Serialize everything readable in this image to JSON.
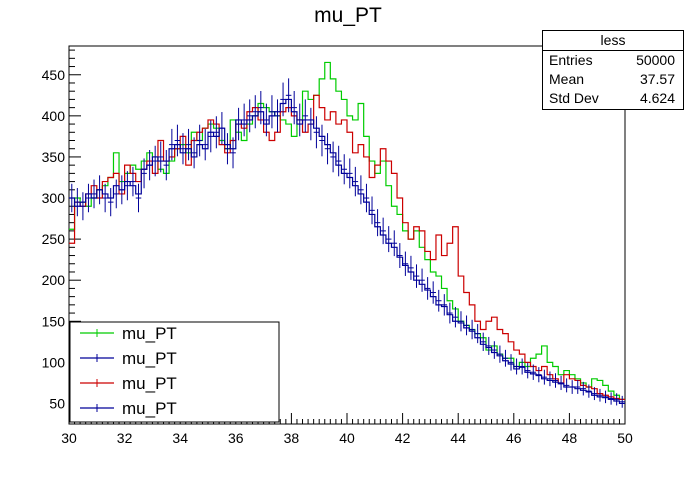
{
  "chart_data": {
    "type": "line",
    "title": "mu_PT",
    "xlabel": "",
    "ylabel": "",
    "xlim": [
      30,
      50
    ],
    "ylim": [
      25,
      485
    ],
    "x_ticks": [
      30,
      32,
      34,
      36,
      38,
      40,
      42,
      44,
      46,
      48,
      50
    ],
    "y_ticks": [
      50,
      100,
      150,
      200,
      250,
      300,
      350,
      400,
      450
    ],
    "bin_width": 0.2,
    "stats": {
      "title": "less",
      "rows": [
        {
          "label": "Entries",
          "value": "50000"
        },
        {
          "label": "Mean",
          "value": "37.57"
        },
        {
          "label": "Std Dev",
          "value": "4.624"
        }
      ]
    },
    "legend": {
      "placement": "bottom-left",
      "entries": [
        {
          "name": "mu_PT",
          "color": "#00cc00"
        },
        {
          "name": "mu_PT",
          "color": "#000099"
        },
        {
          "name": "mu_PT",
          "color": "#cc0000"
        },
        {
          "name": "mu_PT",
          "color": "#000099"
        }
      ]
    },
    "series": [
      {
        "name": "mu_PT",
        "style": "step",
        "color": "#00cc00",
        "values": [
          262,
          300,
          295,
          290,
          300,
          310,
          315,
          325,
          355,
          320,
          330,
          340,
          335,
          345,
          355,
          350,
          335,
          330,
          345,
          360,
          365,
          355,
          380,
          370,
          385,
          390,
          385,
          370,
          360,
          395,
          380,
          370,
          390,
          400,
          415,
          410,
          405,
          400,
          395,
          390,
          375,
          395,
          430,
          420,
          425,
          445,
          465,
          445,
          430,
          420,
          400,
          395,
          415,
          375,
          345,
          330,
          345,
          315,
          290,
          280,
          260,
          250,
          260,
          240,
          225,
          210,
          205,
          190,
          175,
          165,
          150,
          145,
          140,
          135,
          130,
          115,
          120,
          110,
          105,
          105,
          95,
          100,
          95,
          105,
          110,
          120,
          100,
          95,
          85,
          90,
          85,
          80,
          75,
          70,
          80,
          78,
          72,
          65,
          60,
          55
        ]
      },
      {
        "name": "mu_PT",
        "style": "step",
        "color": "#cc0000",
        "values": [
          245,
          295,
          290,
          305,
          315,
          300,
          320,
          325,
          330,
          305,
          340,
          330,
          320,
          335,
          345,
          330,
          370,
          345,
          350,
          360,
          375,
          340,
          370,
          380,
          385,
          395,
          390,
          365,
          355,
          370,
          390,
          385,
          405,
          410,
          395,
          380,
          370,
          380,
          405,
          410,
          400,
          395,
          380,
          390,
          425,
          410,
          395,
          405,
          390,
          395,
          380,
          355,
          365,
          350,
          325,
          340,
          360,
          345,
          330,
          300,
          270,
          250,
          265,
          260,
          235,
          225,
          255,
          230,
          245,
          265,
          205,
          185,
          170,
          150,
          140,
          150,
          155,
          140,
          135,
          125,
          115,
          110,
          100,
          95,
          90,
          95,
          85,
          80,
          75,
          85,
          80,
          78,
          72,
          70,
          68,
          62,
          60,
          58,
          56,
          55
        ]
      },
      {
        "name": "mu_PT",
        "style": "errorbar",
        "color": "#000099",
        "values": [
          300,
          295,
          290,
          300,
          305,
          310,
          300,
          295,
          305,
          310,
          315,
          320,
          300,
          330,
          340,
          345,
          350,
          340,
          365,
          370,
          360,
          365,
          355,
          370,
          365,
          375,
          380,
          385,
          360,
          355,
          390,
          395,
          400,
          405,
          410,
          395,
          405,
          400,
          420,
          425,
          410,
          395,
          400,
          390,
          380,
          370,
          360,
          350,
          345,
          335,
          330,
          320,
          310,
          300,
          285,
          270,
          260,
          250,
          245,
          230,
          220,
          215,
          205,
          200,
          190,
          185,
          175,
          170,
          160,
          155,
          150,
          145,
          140,
          135,
          125,
          120,
          115,
          110,
          105,
          100,
          95,
          95,
          90,
          88,
          85,
          82,
          80,
          78,
          75,
          72,
          70,
          70,
          68,
          65,
          62,
          60,
          58,
          56,
          55,
          52
        ]
      },
      {
        "name": "mu_PT",
        "style": "step",
        "color": "#000099",
        "values": [
          300,
          290,
          295,
          305,
          300,
          310,
          305,
          300,
          315,
          310,
          320,
          315,
          305,
          335,
          340,
          350,
          345,
          345,
          360,
          365,
          355,
          360,
          350,
          365,
          360,
          380,
          375,
          385,
          365,
          360,
          395,
          390,
          395,
          400,
          405,
          390,
          400,
          405,
          415,
          420,
          405,
          390,
          395,
          395,
          385,
          375,
          365,
          355,
          340,
          330,
          325,
          315,
          305,
          295,
          280,
          265,
          255,
          245,
          240,
          228,
          218,
          210,
          200,
          195,
          188,
          180,
          170,
          168,
          158,
          150,
          148,
          142,
          138,
          130,
          122,
          118,
          112,
          108,
          102,
          98,
          92,
          94,
          88,
          86,
          84,
          80,
          78,
          76,
          74,
          70,
          70,
          68,
          66,
          64,
          60,
          58,
          57,
          55,
          53,
          50
        ]
      }
    ]
  }
}
